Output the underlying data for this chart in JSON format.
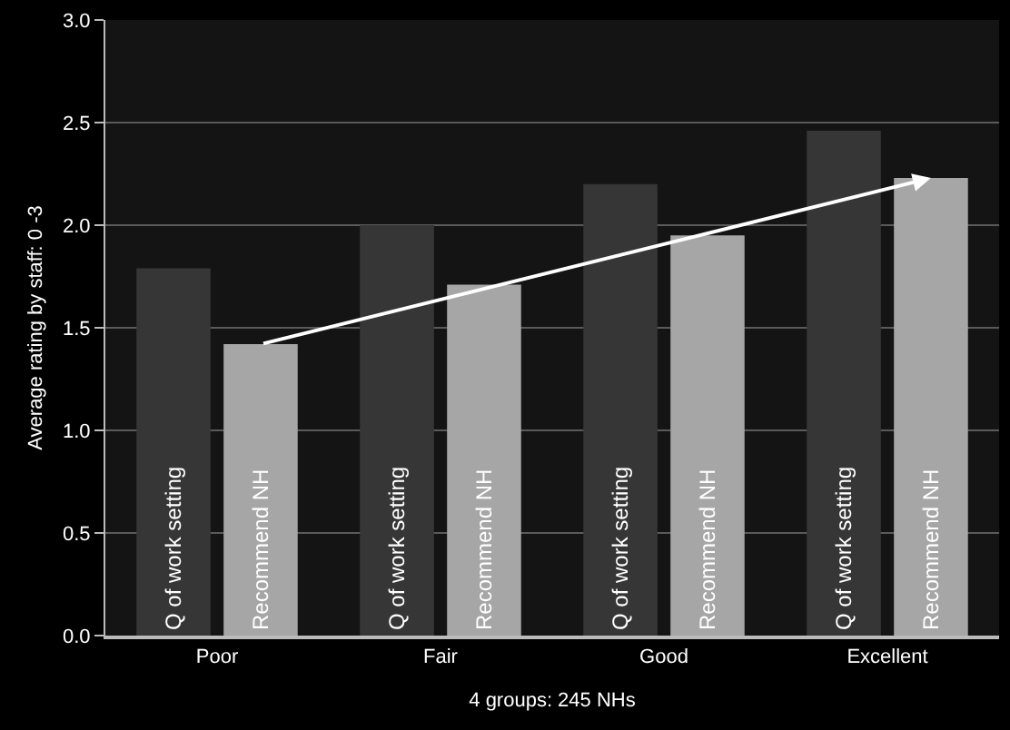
{
  "chart_data": {
    "type": "bar",
    "xlabel": "4 groups: 245 NHs",
    "ylabel": "Average rating by staff: 0 -3",
    "categories": [
      "Poor",
      "Fair",
      "Good",
      "Excellent"
    ],
    "series": [
      {
        "name": "Q of work setting",
        "color": "#363636",
        "values": [
          1.79,
          2.0,
          2.2,
          2.46
        ]
      },
      {
        "name": "Recommend NH",
        "color": "#a6a6a6",
        "values": [
          1.42,
          1.71,
          1.95,
          2.23
        ]
      }
    ],
    "ylim": [
      0,
      3
    ],
    "yticks": [
      {
        "value": 0,
        "label": "0.0"
      },
      {
        "value": 0.5,
        "label": "0.5"
      },
      {
        "value": 1,
        "label": "1.0"
      },
      {
        "value": 1.5,
        "label": "1.5"
      },
      {
        "value": 2,
        "label": "2.0"
      },
      {
        "value": 2.5,
        "label": "2.5"
      },
      {
        "value": 3,
        "label": "3.0"
      }
    ],
    "grid": "y",
    "legend": false
  }
}
